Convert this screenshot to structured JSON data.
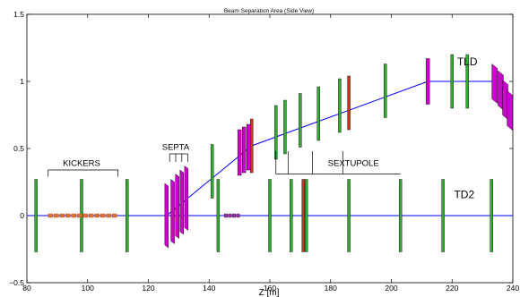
{
  "chart_data": {
    "type": "line",
    "title": "Beam Separation Area (Side View)",
    "xlabel": "Z [m]",
    "ylabel": "",
    "xlim": [
      80,
      240
    ],
    "ylim": [
      -0.5,
      1.5
    ],
    "x_ticks": [
      80,
      100,
      120,
      140,
      160,
      180,
      200,
      220,
      240
    ],
    "y_ticks": [
      -0.5,
      0,
      0.5,
      1,
      1.5
    ],
    "x_tick_labels": [
      "80",
      "100",
      "120",
      "140",
      "160",
      "180",
      "200",
      "220",
      "240"
    ],
    "y_tick_labels": [
      "−0.5",
      "0",
      "0.5",
      "1",
      "1.5"
    ],
    "grid": false,
    "series": [
      {
        "name": "TD2",
        "color": "#0000ff",
        "points": [
          [
            80,
            0
          ],
          [
            240,
            0
          ]
        ]
      },
      {
        "name": "TLD",
        "color": "#0000ff",
        "points": [
          [
            126,
            0
          ],
          [
            154,
            0.52
          ],
          [
            212,
            1.0
          ],
          [
            234,
            1.0
          ]
        ]
      }
    ],
    "annotations": [
      {
        "text": "KICKERS",
        "x": 98,
        "y": 0.37,
        "color": "#000000"
      },
      {
        "text": "SEPTA",
        "x": 129,
        "y": 0.49,
        "color": "#000000"
      },
      {
        "text": "SEXTUPOLE",
        "x": 187.5,
        "y": 0.37,
        "color": "#000000"
      },
      {
        "text": "TLD",
        "x": 225,
        "y": 1.12,
        "color": "#cc00cc"
      },
      {
        "text": "TD2",
        "x": 224,
        "y": 0.13,
        "color": "#000000"
      }
    ],
    "elements": {
      "lower_quads": [
        {
          "z": 83,
          "color": "#33aa33"
        },
        {
          "z": 98,
          "color": "#33aa33"
        },
        {
          "z": 113,
          "color": "#33aa33"
        },
        {
          "z": 143,
          "color": "#33aa33"
        },
        {
          "z": 160,
          "color": "#33aa33"
        },
        {
          "z": 167,
          "color": "#33aa33"
        },
        {
          "z": 172,
          "color": "#33aa33"
        },
        {
          "z": 186,
          "color": "#33aa33"
        },
        {
          "z": 203,
          "color": "#33aa33"
        },
        {
          "z": 217,
          "color": "#33aa33"
        },
        {
          "z": 233,
          "color": "#33aa33"
        },
        {
          "z": 171,
          "color": "#cc3322"
        }
      ],
      "kickers": {
        "from": 87,
        "to": 110,
        "y": 0
      },
      "septa": [
        {
          "z": 126,
          "y": 0.0
        },
        {
          "z": 128,
          "y": 0.03
        },
        {
          "z": 129.5,
          "y": 0.07
        },
        {
          "z": 131,
          "y": 0.1
        },
        {
          "z": 132.5,
          "y": 0.13
        }
      ],
      "purple_bar": {
        "from": 145,
        "to": 149,
        "y": 0
      },
      "upper_quads": [
        {
          "z": 141,
          "y": 0.33,
          "color": "#33aa33"
        },
        {
          "z": 162,
          "y": 0.62,
          "color": "#33aa33"
        },
        {
          "z": 165,
          "y": 0.66,
          "color": "#33aa33"
        },
        {
          "z": 170,
          "y": 0.71,
          "color": "#33aa33"
        },
        {
          "z": 176,
          "y": 0.76,
          "color": "#33aa33"
        },
        {
          "z": 183,
          "y": 0.82,
          "color": "#33aa33"
        },
        {
          "z": 198,
          "y": 0.93,
          "color": "#33aa33"
        },
        {
          "z": 220,
          "y": 1.0,
          "color": "#33aa33"
        },
        {
          "z": 225,
          "y": 1.0,
          "color": "#33aa33"
        },
        {
          "z": 186,
          "y": 0.84,
          "color": "#cc3322"
        },
        {
          "z": 154,
          "y": 0.52,
          "color": "#cc3322"
        }
      ],
      "upper_magnets": [
        {
          "z": 150,
          "y": 0.47
        },
        {
          "z": 151.5,
          "y": 0.49
        },
        {
          "z": 153,
          "y": 0.51
        },
        {
          "z": 212,
          "y": 1.0
        }
      ],
      "tld_magnets": [
        {
          "z": 234,
          "y": 1.0
        },
        {
          "z": 236,
          "y": 0.95
        },
        {
          "z": 237.5,
          "y": 0.88
        },
        {
          "z": 239,
          "y": 0.8
        }
      ],
      "kickers_bracket": {
        "from": 87,
        "to": 110,
        "top": 0.34,
        "bottom": 0.29
      },
      "septa_bracket": {
        "x": [
          127,
          129,
          131,
          133
        ],
        "top": 0.46
      },
      "sextupole_bracket": {
        "x": [
          162,
          166,
          174,
          184
        ],
        "top": 0.38,
        "bottom": 0.31,
        "end": 203
      }
    }
  }
}
